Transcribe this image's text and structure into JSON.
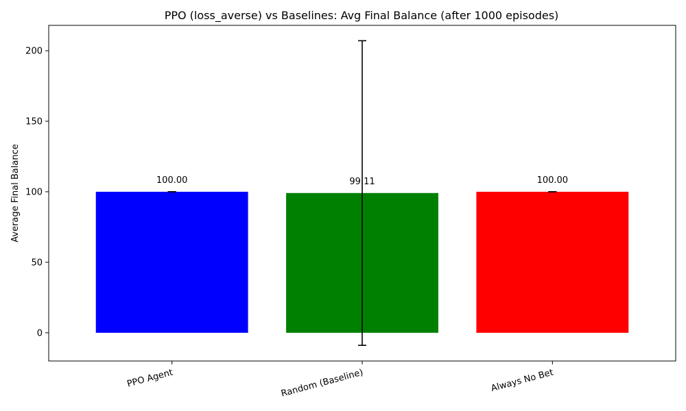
{
  "chart_data": {
    "type": "bar",
    "title": "PPO (loss_averse) vs Baselines: Avg Final Balance (after 1000 episodes)",
    "xlabel": "",
    "ylabel": "Average Final Balance",
    "categories": [
      "PPO Agent",
      "Random (Baseline)",
      "Always No Bet"
    ],
    "values": [
      100.0,
      99.11,
      100.0
    ],
    "error": [
      0.0,
      108.0,
      0.0
    ],
    "data_labels": [
      "100.00",
      "99.11",
      "100.00"
    ],
    "colors": [
      "#0000ff",
      "#008000",
      "#ff0000"
    ],
    "ylim": [
      -20,
      218
    ],
    "yticks": [
      0,
      50,
      100,
      150,
      200
    ],
    "ytick_labels": [
      "0",
      "50",
      "100",
      "150",
      "200"
    ],
    "grid": false,
    "legend": "none"
  }
}
